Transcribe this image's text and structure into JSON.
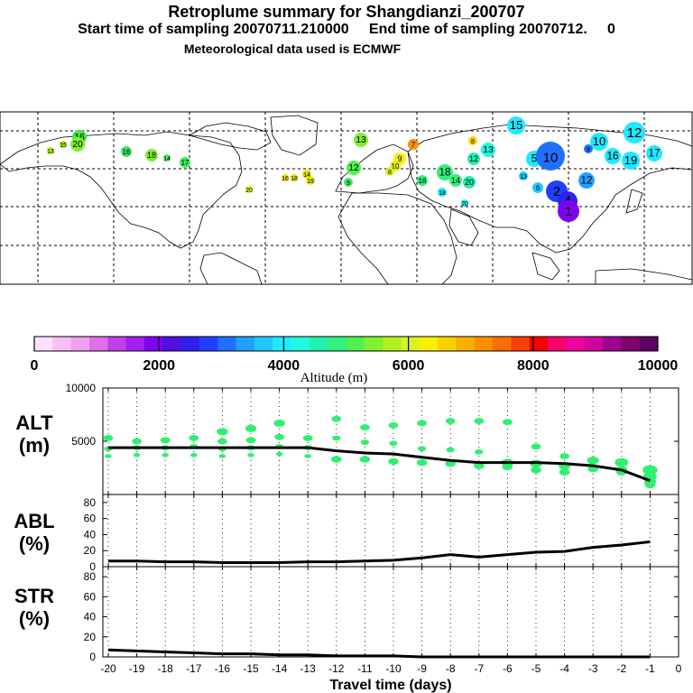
{
  "header": {
    "title": "Retroplume summary for Shangdianzi_200707",
    "subtitle": "Start time of sampling 20070711.210000     End time of sampling 20070712.     0",
    "met": "Meteorological data used is ECMWF"
  },
  "colorbar": {
    "ticks": [
      "0",
      "2000",
      "4000",
      "6000",
      "8000",
      "10000"
    ],
    "label": "Altitude (m)",
    "colors": [
      "#fce0fc",
      "#f8c0f8",
      "#f0a0f0",
      "#e070e8",
      "#c040e8",
      "#a020f0",
      "#8000f0",
      "#5010e0",
      "#3020f0",
      "#2040ff",
      "#2070ff",
      "#20a0ff",
      "#20c8ff",
      "#20e8ff",
      "#20f8e0",
      "#20f0b0",
      "#30f080",
      "#50f050",
      "#80f030",
      "#b0f020",
      "#d8f020",
      "#f8f000",
      "#f8d000",
      "#f8b000",
      "#f89000",
      "#f87000",
      "#f84000",
      "#f80000",
      "#f80070",
      "#f000a0",
      "#d000a0",
      "#a00090",
      "#800070",
      "#600060"
    ]
  },
  "map": {
    "markers": [
      {
        "v": "16",
        "c": "#40e840"
      },
      {
        "v": "20",
        "c": "#80f030"
      },
      {
        "v": "13",
        "c": "#b0f020"
      },
      {
        "v": "15",
        "c": "#a0f020"
      },
      {
        "v": "16",
        "c": "#40e860"
      },
      {
        "v": "18",
        "c": "#80f030"
      },
      {
        "v": "17",
        "c": "#40e860"
      },
      {
        "v": "14",
        "c": "#50f050"
      },
      {
        "v": "13",
        "c": "#80f030"
      },
      {
        "v": "7",
        "c": "#f89000"
      },
      {
        "v": "9",
        "c": "#f8f000"
      },
      {
        "v": "10",
        "c": "#e0f020"
      },
      {
        "v": "12",
        "c": "#50f050"
      },
      {
        "v": "8",
        "c": "#d8f020"
      },
      {
        "v": "19",
        "c": "#d8f020"
      },
      {
        "v": "14",
        "c": "#f0e000"
      },
      {
        "v": "16",
        "c": "#f0e000"
      },
      {
        "v": "18",
        "c": "#f0e000"
      },
      {
        "v": "20",
        "c": "#d8f020"
      },
      {
        "v": "9",
        "c": "#40e860"
      },
      {
        "v": "18",
        "c": "#30f080"
      },
      {
        "v": "16",
        "c": "#30f080"
      },
      {
        "v": "14",
        "c": "#30f080"
      },
      {
        "v": "20",
        "c": "#20f0b0"
      },
      {
        "v": "12",
        "c": "#20f0b0"
      },
      {
        "v": "13",
        "c": "#20f8e0"
      },
      {
        "v": "15",
        "c": "#20e8ff"
      },
      {
        "v": "8",
        "c": "#f8d000"
      },
      {
        "v": "5",
        "c": "#20e8ff"
      },
      {
        "v": "10",
        "c": "#2070ff"
      },
      {
        "v": "10",
        "c": "#20e8ff"
      },
      {
        "v": "12",
        "c": "#20e8ff"
      },
      {
        "v": "17",
        "c": "#20e8ff"
      },
      {
        "v": "16",
        "c": "#20e8ff"
      },
      {
        "v": "19",
        "c": "#20e8ff"
      },
      {
        "v": "6",
        "c": "#20c8ff"
      },
      {
        "v": "2",
        "c": "#2040ff"
      },
      {
        "v": "4",
        "c": "#3020f0"
      },
      {
        "v": "1",
        "c": "#8000f0"
      },
      {
        "v": "12",
        "c": "#20a0ff"
      },
      {
        "v": "13",
        "c": "#20c8ff"
      },
      {
        "v": "18",
        "c": "#20e8ff"
      },
      {
        "v": "20",
        "c": "#20f8e0"
      },
      {
        "v": "9",
        "c": "#2070ff"
      }
    ]
  },
  "chart_data": [
    {
      "type": "scatter+line",
      "panel": "ALT",
      "ylabel": "ALT\n(m)",
      "ylim": [
        0,
        10000
      ],
      "yticks": [
        5000,
        10000
      ],
      "line": {
        "x": [
          -20,
          -19,
          -18,
          -17,
          -16,
          -15,
          -14,
          -13,
          -12,
          -11,
          -10,
          -9,
          -8,
          -7,
          -6,
          -5,
          -4,
          -3,
          -2,
          -1
        ],
        "y": [
          4400,
          4400,
          4400,
          4400,
          4400,
          4400,
          4400,
          4400,
          4100,
          3900,
          3800,
          3500,
          3200,
          3000,
          3000,
          3000,
          2900,
          2700,
          2300,
          1300
        ]
      },
      "scatter": [
        {
          "x": -20,
          "y": [
            5300,
            4300,
            3600
          ]
        },
        {
          "x": -19,
          "y": [
            5000,
            4400,
            3700
          ]
        },
        {
          "x": -18,
          "y": [
            5100,
            4400,
            3700
          ]
        },
        {
          "x": -17,
          "y": [
            5300,
            4500,
            3700
          ]
        },
        {
          "x": -16,
          "y": [
            5900,
            5000,
            4300,
            3600
          ]
        },
        {
          "x": -15,
          "y": [
            6200,
            5100,
            4400,
            3700
          ]
        },
        {
          "x": -14,
          "y": [
            6700,
            5400,
            4500,
            3800
          ]
        },
        {
          "x": -13,
          "y": [
            5300,
            4400,
            3600
          ]
        },
        {
          "x": -12,
          "y": [
            7100,
            5300,
            3300
          ]
        },
        {
          "x": -11,
          "y": [
            6300,
            4900,
            3300
          ]
        },
        {
          "x": -10,
          "y": [
            6500,
            4800,
            3100
          ]
        },
        {
          "x": -9,
          "y": [
            6700,
            4300,
            3000
          ]
        },
        {
          "x": -8,
          "y": [
            6900,
            4200,
            2900
          ]
        },
        {
          "x": -7,
          "y": [
            6900,
            4000,
            2700
          ]
        },
        {
          "x": -6,
          "y": [
            6800,
            3000,
            2600
          ]
        },
        {
          "x": -5,
          "y": [
            4500,
            2900,
            2300
          ]
        },
        {
          "x": -4,
          "y": [
            3600,
            2700,
            2100
          ]
        },
        {
          "x": -3,
          "y": [
            3200,
            2400
          ]
        },
        {
          "x": -2,
          "y": [
            3000,
            2300,
            2100
          ]
        },
        {
          "x": -1,
          "y": [
            2300,
            1700,
            1200,
            900
          ]
        }
      ]
    },
    {
      "type": "line",
      "panel": "ABL",
      "ylabel": "ABL\n(%)",
      "ylim": [
        0,
        90
      ],
      "yticks": [
        0,
        20,
        40,
        60,
        80
      ],
      "x": [
        -20,
        -19,
        -18,
        -17,
        -16,
        -15,
        -14,
        -13,
        -12,
        -11,
        -10,
        -9,
        -8,
        -7,
        -6,
        -5,
        -4,
        -3,
        -2,
        -1
      ],
      "y": [
        7,
        7,
        6,
        6,
        5,
        5,
        5,
        6,
        6,
        7,
        8,
        11,
        15,
        12,
        15,
        18,
        19,
        24,
        27,
        31
      ]
    },
    {
      "type": "line",
      "panel": "STR",
      "ylabel": "STR\n(%)",
      "ylim": [
        0,
        90
      ],
      "yticks": [
        0,
        20,
        40,
        60,
        80
      ],
      "x": [
        -20,
        -19,
        -18,
        -17,
        -16,
        -15,
        -14,
        -13,
        -12,
        -11,
        -10,
        -9,
        -8,
        -7,
        -6,
        -5,
        -4,
        -3,
        -2,
        -1
      ],
      "y": [
        7,
        6,
        5,
        4,
        3,
        3,
        2,
        2,
        1,
        1,
        1,
        0,
        0,
        0,
        0,
        0,
        0,
        0,
        0,
        0
      ]
    }
  ],
  "xaxis": {
    "ticks": [
      -20,
      -19,
      -18,
      -17,
      -16,
      -15,
      -14,
      -13,
      -12,
      -11,
      -10,
      -9,
      -8,
      -7,
      -6,
      -5,
      -4,
      -3,
      -2,
      -1,
      0
    ],
    "tick_labels": [
      "-20",
      "-19",
      "-18",
      "-17",
      "-16",
      "-15",
      "-14",
      "-13",
      "-12",
      "-11",
      "-10",
      "-9",
      "-8",
      "-7",
      "-6",
      "-5",
      "-4",
      "-3",
      "-2",
      "-1",
      "0"
    ],
    "label": "Travel time (days)"
  },
  "panel_labels": {
    "alt_1": "ALT",
    "alt_2": "(m)",
    "abl_1": "ABL",
    "abl_2": "(%)",
    "str_1": "STR",
    "str_2": "(%)"
  }
}
